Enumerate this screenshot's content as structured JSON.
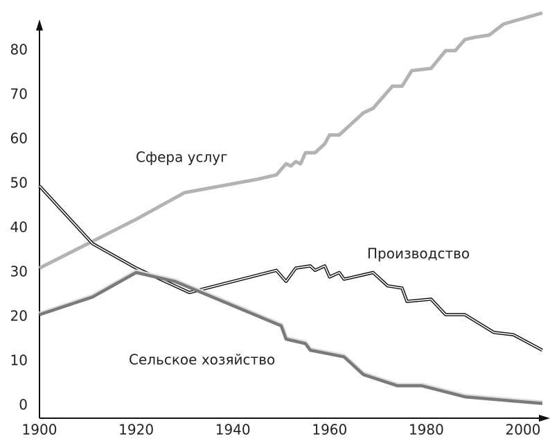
{
  "chart_data": {
    "type": "line",
    "xlim": [
      1900,
      2005
    ],
    "xticks": [
      1900,
      1920,
      1940,
      1960,
      1980,
      2000
    ],
    "ylim": [
      0,
      90
    ],
    "yticks": [
      0,
      10,
      20,
      30,
      40,
      50,
      60,
      70,
      80
    ],
    "series": [
      {
        "name": "Сфера услуг",
        "color": "#b3b3b3",
        "x": [
          1900,
          1910,
          1920,
          1930,
          1945,
          1949,
          1951,
          1952,
          1953,
          1954,
          1955,
          1957,
          1959,
          1960,
          1962,
          1964,
          1967,
          1969,
          1973,
          1975,
          1977,
          1981,
          1984,
          1986,
          1988,
          1990,
          1993,
          1996,
          2004
        ],
        "values": [
          31,
          36.5,
          42,
          48,
          51,
          52,
          54.5,
          54,
          55,
          54.5,
          57,
          57,
          59,
          61,
          61,
          63,
          66,
          67,
          72,
          72,
          75.5,
          76,
          80,
          80,
          82.5,
          83,
          83.5,
          86,
          88.5
        ]
      },
      {
        "name": "Производство",
        "color": "#111111",
        "x": [
          1900,
          1911,
          1920,
          1931,
          1940,
          1949,
          1951,
          1953,
          1956,
          1957,
          1959,
          1960,
          1962,
          1963,
          1969,
          1972,
          1975,
          1976,
          1981,
          1984,
          1988,
          1994,
          1998,
          2004
        ],
        "values": [
          49.5,
          36.5,
          31,
          25.5,
          28,
          30.5,
          28,
          31,
          31.5,
          30.5,
          31.5,
          29,
          30,
          28.5,
          30,
          27,
          26.5,
          23.5,
          24,
          20.5,
          20.5,
          16.5,
          16,
          12.5
        ]
      },
      {
        "name": "Сельское хозяйство",
        "color": "#7a7a7a",
        "x": [
          1900,
          1911,
          1920,
          1928,
          1950,
          1951,
          1955,
          1956,
          1963,
          1967,
          1974,
          1979,
          1988,
          2004
        ],
        "values": [
          20.5,
          24.5,
          30,
          28,
          18,
          15,
          14,
          12.5,
          11,
          7,
          4.5,
          4.5,
          2,
          0.5
        ]
      }
    ]
  }
}
